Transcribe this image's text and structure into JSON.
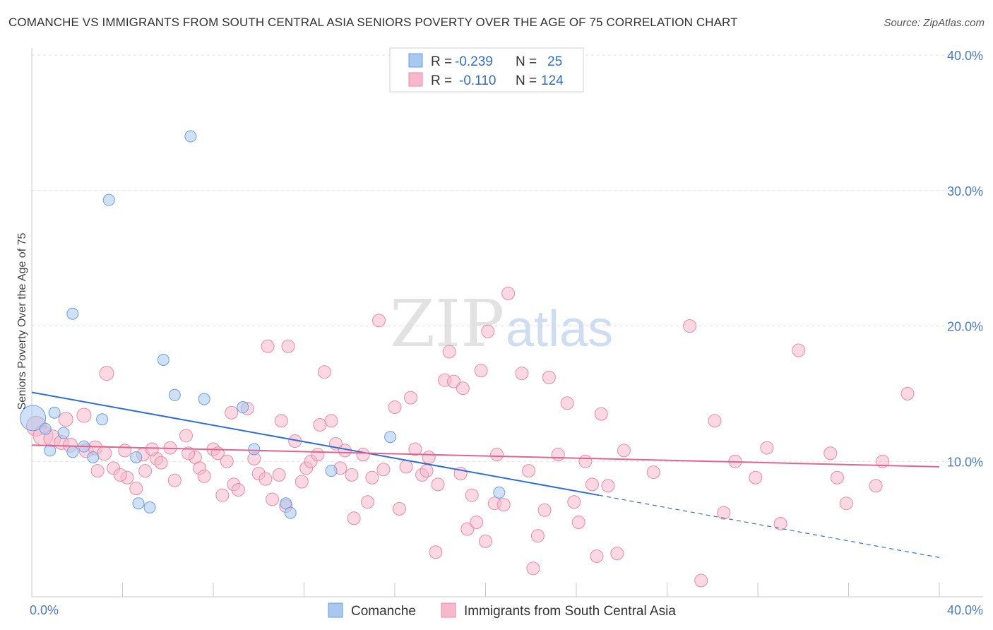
{
  "chart_data": {
    "type": "scatter",
    "title": "COMANCHE VS IMMIGRANTS FROM SOUTH CENTRAL ASIA SENIORS POVERTY OVER THE AGE OF 75 CORRELATION CHART",
    "source": "Source: ZipAtlas.com",
    "ylabel": "Seniors Poverty Over the Age of 75",
    "xlim": [
      0,
      40
    ],
    "ylim": [
      0,
      40
    ],
    "y_ticks": [
      {
        "value": 10,
        "label": "10.0%"
      },
      {
        "value": 20,
        "label": "20.0%"
      },
      {
        "value": 30,
        "label": "30.0%"
      },
      {
        "value": 40,
        "label": "40.0%"
      }
    ],
    "x_tick_labels": {
      "min": "0.0%",
      "max": "40.0%"
    },
    "grid": true,
    "watermark": {
      "zip": "ZIP",
      "atlas": "atlas"
    },
    "legend_position": "top-center",
    "stats": [
      {
        "r_label": "R =",
        "r": "-0.239",
        "n_label": "N =",
        "n": "25"
      },
      {
        "r_label": "R =",
        "r": "-0.110",
        "n_label": "N =",
        "n": "124"
      }
    ],
    "series": [
      {
        "name": "Comanche",
        "fill": "#a8c8f0",
        "stroke": "#6a9ee0",
        "line_color": "#2e6fd1",
        "trend": {
          "x0": 0,
          "y0": 15.1,
          "x1": 25,
          "y1": 7.5,
          "dash_to_x": 40,
          "dash_to_y": 2.9
        },
        "points": [
          [
            0.05,
            13.2,
            18
          ],
          [
            1.0,
            13.6,
            8
          ],
          [
            0.6,
            12.4,
            8
          ],
          [
            1.4,
            12.1,
            8
          ],
          [
            0.8,
            10.8,
            8
          ],
          [
            1.8,
            10.7,
            8
          ],
          [
            3.1,
            13.1,
            8
          ],
          [
            2.3,
            11.1,
            8
          ],
          [
            2.7,
            10.3,
            8
          ],
          [
            3.4,
            29.3,
            8
          ],
          [
            7.0,
            34.0,
            8
          ],
          [
            1.8,
            20.9,
            8
          ],
          [
            5.8,
            17.5,
            8
          ],
          [
            6.3,
            14.9,
            8
          ],
          [
            7.6,
            14.6,
            8
          ],
          [
            9.3,
            14.0,
            8
          ],
          [
            9.8,
            10.9,
            8
          ],
          [
            11.2,
            6.9,
            8
          ],
          [
            11.4,
            6.2,
            8
          ],
          [
            4.6,
            10.3,
            8
          ],
          [
            4.7,
            6.9,
            8
          ],
          [
            5.2,
            6.6,
            8
          ],
          [
            13.2,
            9.3,
            8
          ],
          [
            15.8,
            11.8,
            8
          ],
          [
            20.6,
            7.7,
            8
          ]
        ]
      },
      {
        "name": "Immigrants from South Central Asia",
        "fill": "#f7b8cb",
        "stroke": "#e88aa8",
        "line_color": "#e0668f",
        "trend": {
          "x0": 0,
          "y0": 11.2,
          "x1": 40,
          "y1": 9.6
        },
        "points": [
          [
            0.2,
            12.6,
            14
          ],
          [
            0.5,
            11.9,
            14
          ],
          [
            0.9,
            11.7,
            12
          ],
          [
            1.3,
            11.4,
            10
          ],
          [
            1.5,
            13.1,
            10
          ],
          [
            1.7,
            11.2,
            10
          ],
          [
            2.3,
            13.4,
            10
          ],
          [
            2.4,
            10.8,
            10
          ],
          [
            2.8,
            11.0,
            10
          ],
          [
            3.2,
            10.6,
            10
          ],
          [
            3.3,
            16.5,
            10
          ],
          [
            2.9,
            9.3,
            9
          ],
          [
            3.6,
            9.5,
            9
          ],
          [
            4.2,
            8.8,
            9
          ],
          [
            4.1,
            10.8,
            9
          ],
          [
            4.9,
            10.5,
            9
          ],
          [
            5.0,
            9.3,
            9
          ],
          [
            5.5,
            10.2,
            9
          ],
          [
            5.7,
            9.9,
            9
          ],
          [
            6.1,
            11.0,
            9
          ],
          [
            6.3,
            8.6,
            9
          ],
          [
            6.8,
            11.9,
            9
          ],
          [
            7.2,
            10.3,
            9
          ],
          [
            7.4,
            9.5,
            9
          ],
          [
            7.6,
            8.9,
            9
          ],
          [
            8.0,
            10.9,
            9
          ],
          [
            8.2,
            10.6,
            9
          ],
          [
            8.6,
            10.0,
            9
          ],
          [
            8.8,
            13.6,
            9
          ],
          [
            8.9,
            8.3,
            9
          ],
          [
            9.1,
            7.9,
            9
          ],
          [
            9.5,
            13.9,
            9
          ],
          [
            9.8,
            10.2,
            9
          ],
          [
            10.0,
            9.1,
            9
          ],
          [
            10.3,
            8.7,
            9
          ],
          [
            10.4,
            18.5,
            9
          ],
          [
            10.6,
            7.2,
            9
          ],
          [
            10.9,
            9.0,
            9
          ],
          [
            11.2,
            6.7,
            9
          ],
          [
            11.3,
            18.5,
            9
          ],
          [
            11.0,
            13.0,
            9
          ],
          [
            11.6,
            11.5,
            9
          ],
          [
            11.9,
            8.5,
            9
          ],
          [
            12.1,
            9.5,
            9
          ],
          [
            12.3,
            10.0,
            9
          ],
          [
            12.7,
            12.7,
            9
          ],
          [
            12.9,
            16.6,
            9
          ],
          [
            13.2,
            13.0,
            9
          ],
          [
            13.4,
            11.3,
            9
          ],
          [
            13.6,
            9.5,
            9
          ],
          [
            13.8,
            10.8,
            9
          ],
          [
            14.1,
            9.0,
            9
          ],
          [
            14.2,
            5.8,
            9
          ],
          [
            14.6,
            10.5,
            9
          ],
          [
            14.8,
            7.0,
            9
          ],
          [
            15.0,
            8.8,
            9
          ],
          [
            15.3,
            20.4,
            9
          ],
          [
            15.5,
            9.4,
            9
          ],
          [
            16.0,
            14.0,
            9
          ],
          [
            16.2,
            6.5,
            9
          ],
          [
            16.5,
            9.6,
            9
          ],
          [
            16.7,
            14.7,
            9
          ],
          [
            16.9,
            10.9,
            9
          ],
          [
            17.2,
            9.0,
            9
          ],
          [
            17.4,
            9.3,
            9
          ],
          [
            17.8,
            3.3,
            9
          ],
          [
            17.9,
            8.3,
            9
          ],
          [
            18.2,
            16.0,
            9
          ],
          [
            18.4,
            18.1,
            9
          ],
          [
            18.6,
            15.9,
            9
          ],
          [
            19.0,
            15.4,
            9
          ],
          [
            19.2,
            5.0,
            9
          ],
          [
            19.4,
            7.5,
            9
          ],
          [
            19.6,
            5.5,
            9
          ],
          [
            19.8,
            16.7,
            9
          ],
          [
            20.0,
            4.1,
            9
          ],
          [
            20.4,
            6.9,
            9
          ],
          [
            20.1,
            19.6,
            9
          ],
          [
            20.5,
            10.5,
            9
          ],
          [
            20.8,
            6.8,
            9
          ],
          [
            21.0,
            22.4,
            9
          ],
          [
            21.6,
            16.5,
            9
          ],
          [
            21.9,
            9.3,
            9
          ],
          [
            22.1,
            2.1,
            9
          ],
          [
            22.3,
            4.5,
            9
          ],
          [
            22.6,
            6.4,
            9
          ],
          [
            22.8,
            16.2,
            9
          ],
          [
            23.2,
            10.5,
            9
          ],
          [
            23.6,
            14.3,
            9
          ],
          [
            23.9,
            7.0,
            9
          ],
          [
            24.4,
            10.0,
            9
          ],
          [
            24.7,
            8.3,
            9
          ],
          [
            24.9,
            3.0,
            9
          ],
          [
            25.1,
            13.5,
            9
          ],
          [
            25.4,
            8.2,
            9
          ],
          [
            25.8,
            3.2,
            9
          ],
          [
            26.1,
            10.8,
            9
          ],
          [
            27.4,
            9.2,
            9
          ],
          [
            29.0,
            20.0,
            9
          ],
          [
            29.5,
            1.2,
            9
          ],
          [
            30.1,
            13.0,
            9
          ],
          [
            30.5,
            6.2,
            9
          ],
          [
            31.0,
            10.0,
            9
          ],
          [
            31.9,
            8.8,
            9
          ],
          [
            32.4,
            11.0,
            9
          ],
          [
            33.0,
            5.4,
            9
          ],
          [
            33.8,
            18.2,
            9
          ],
          [
            35.2,
            10.6,
            9
          ],
          [
            35.5,
            8.8,
            9
          ],
          [
            35.9,
            6.9,
            9
          ],
          [
            37.2,
            8.2,
            9
          ],
          [
            37.5,
            10.0,
            9
          ],
          [
            38.6,
            15.0,
            9
          ],
          [
            6.9,
            10.6,
            9
          ],
          [
            5.3,
            10.9,
            9
          ],
          [
            8.4,
            7.5,
            9
          ],
          [
            4.6,
            8.0,
            9
          ],
          [
            3.9,
            9.0,
            9
          ],
          [
            12.6,
            10.5,
            9
          ],
          [
            17.5,
            10.3,
            9
          ],
          [
            24.1,
            5.5,
            9
          ],
          [
            18.9,
            9.1,
            9
          ]
        ]
      }
    ]
  }
}
